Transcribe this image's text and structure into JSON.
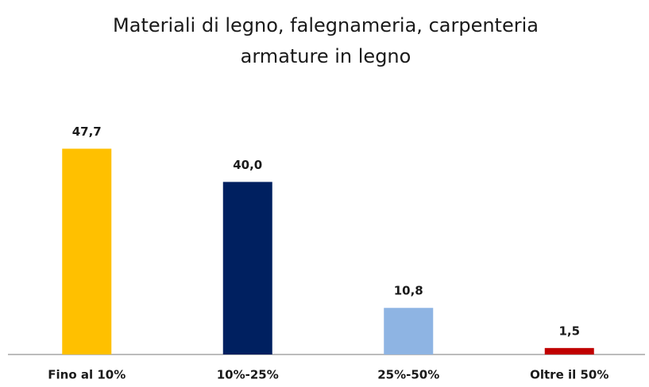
{
  "chart_data": {
    "type": "bar",
    "title": [
      "Materiali di legno, falegnameria, carpenteria",
      "armature in legno"
    ],
    "categories": [
      "Fino al 10%",
      "10%-25%",
      "25%-50%",
      "Oltre il 50%"
    ],
    "values": [
      47.7,
      40.0,
      10.8,
      1.5
    ],
    "value_labels": [
      "47,7",
      "40,0",
      "10,8",
      "1,5"
    ],
    "colors": [
      "#FFC000",
      "#002060",
      "#8EB4E3",
      "#C00000"
    ],
    "ylim": [
      0,
      50
    ]
  }
}
